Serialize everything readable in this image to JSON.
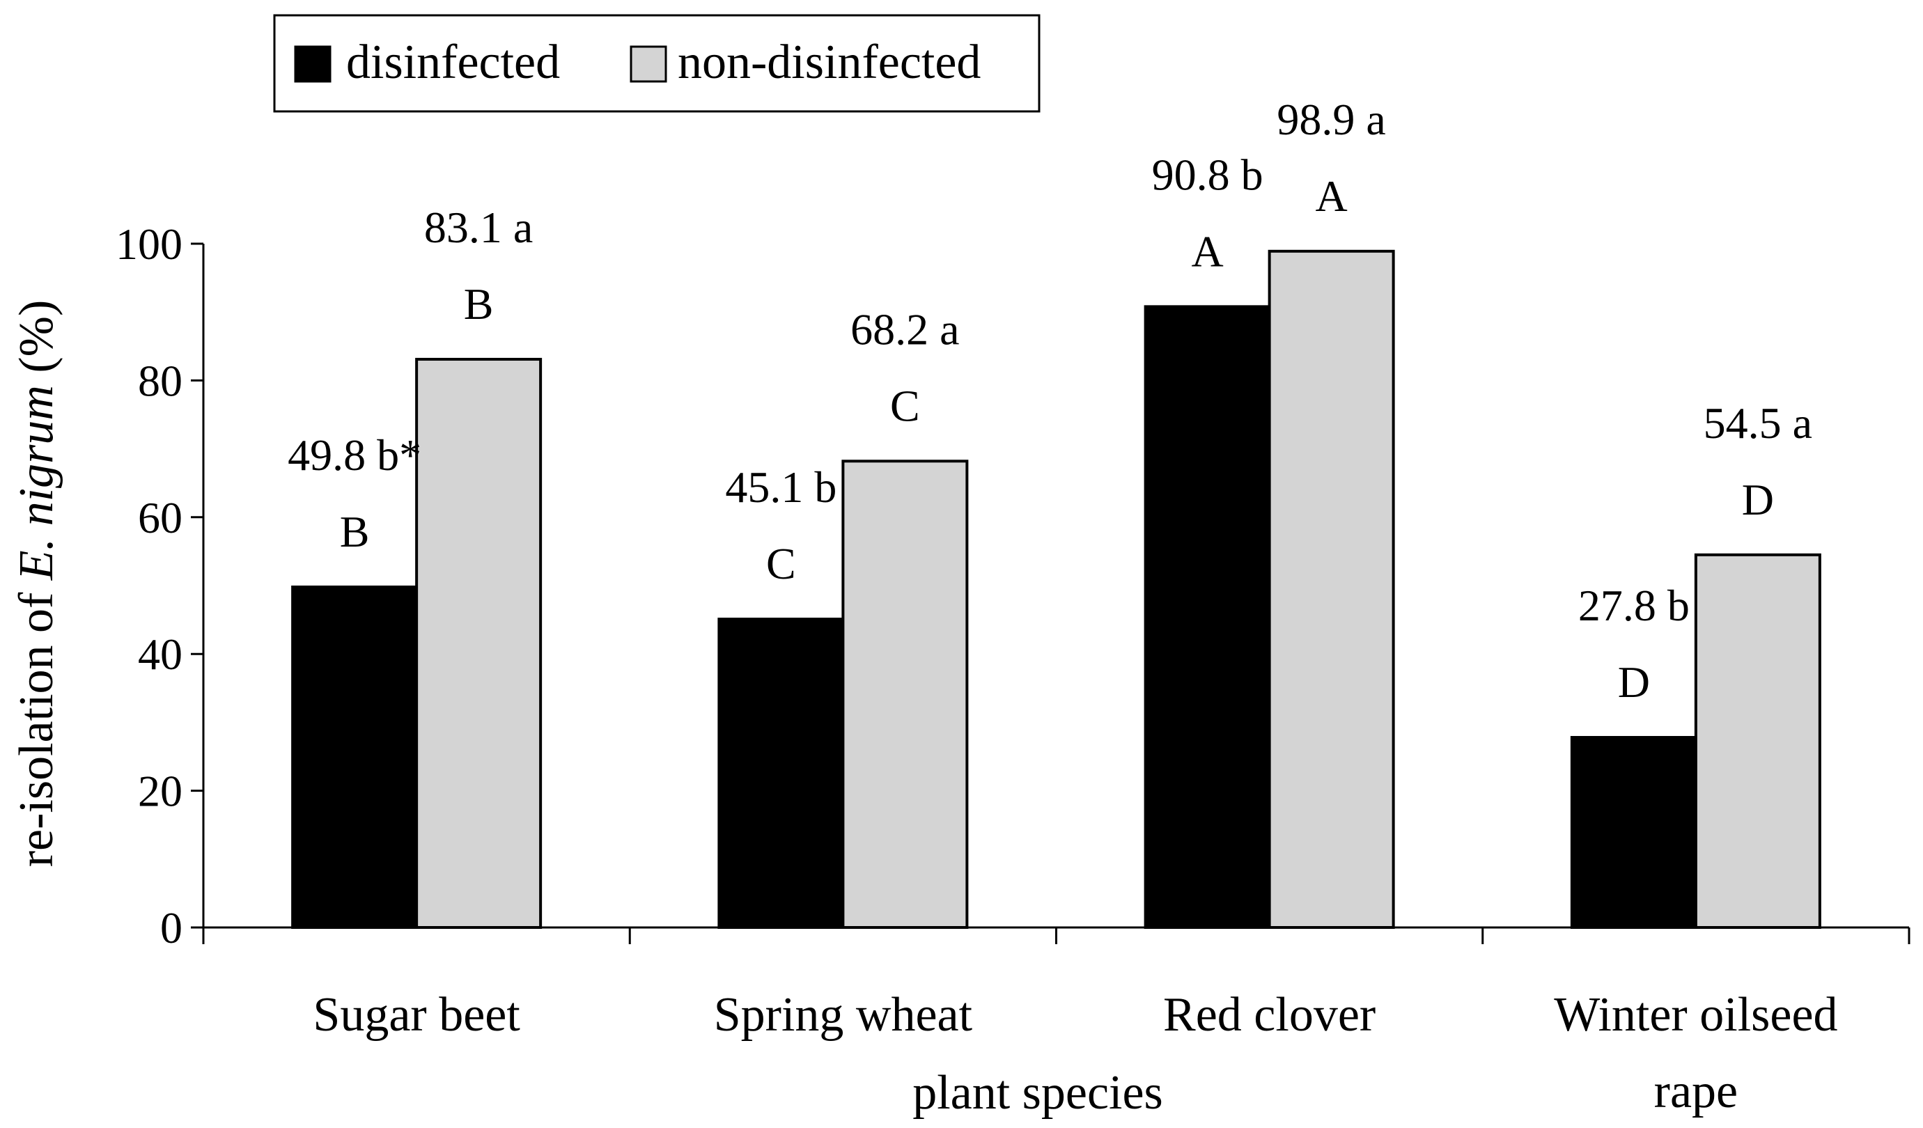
{
  "chart_data": {
    "type": "bar",
    "title": "",
    "xlabel": "plant species",
    "ylabel": {
      "prefix": "re-isolation of ",
      "italic": "E. nigrum",
      "suffix": " (%)"
    },
    "ylim": [
      0,
      100
    ],
    "yticks": [
      0,
      20,
      40,
      60,
      80,
      100
    ],
    "grid": false,
    "legend_position": "top-left",
    "categories": [
      {
        "lines": [
          "Sugar beet"
        ]
      },
      {
        "lines": [
          "Spring wheat"
        ]
      },
      {
        "lines": [
          "Red clover"
        ]
      },
      {
        "lines": [
          "Winter oilseed",
          "rape"
        ]
      }
    ],
    "series": [
      {
        "name": "disinfected",
        "color": "#000000",
        "values": [
          49.8,
          45.1,
          90.8,
          27.8
        ],
        "value_labels": [
          "49.8 b*",
          "45.1 b",
          "90.8 b",
          "27.8 b"
        ],
        "letter_labels": [
          "B",
          "C",
          "A",
          "D"
        ]
      },
      {
        "name": "non-disinfected",
        "color": "#d4d4d4",
        "values": [
          83.1,
          68.2,
          98.9,
          54.5
        ],
        "value_labels": [
          "83.1 a",
          "68.2 a",
          "98.9 a",
          "54.5 a"
        ],
        "letter_labels": [
          "B",
          "C",
          "A",
          "D"
        ]
      }
    ]
  }
}
